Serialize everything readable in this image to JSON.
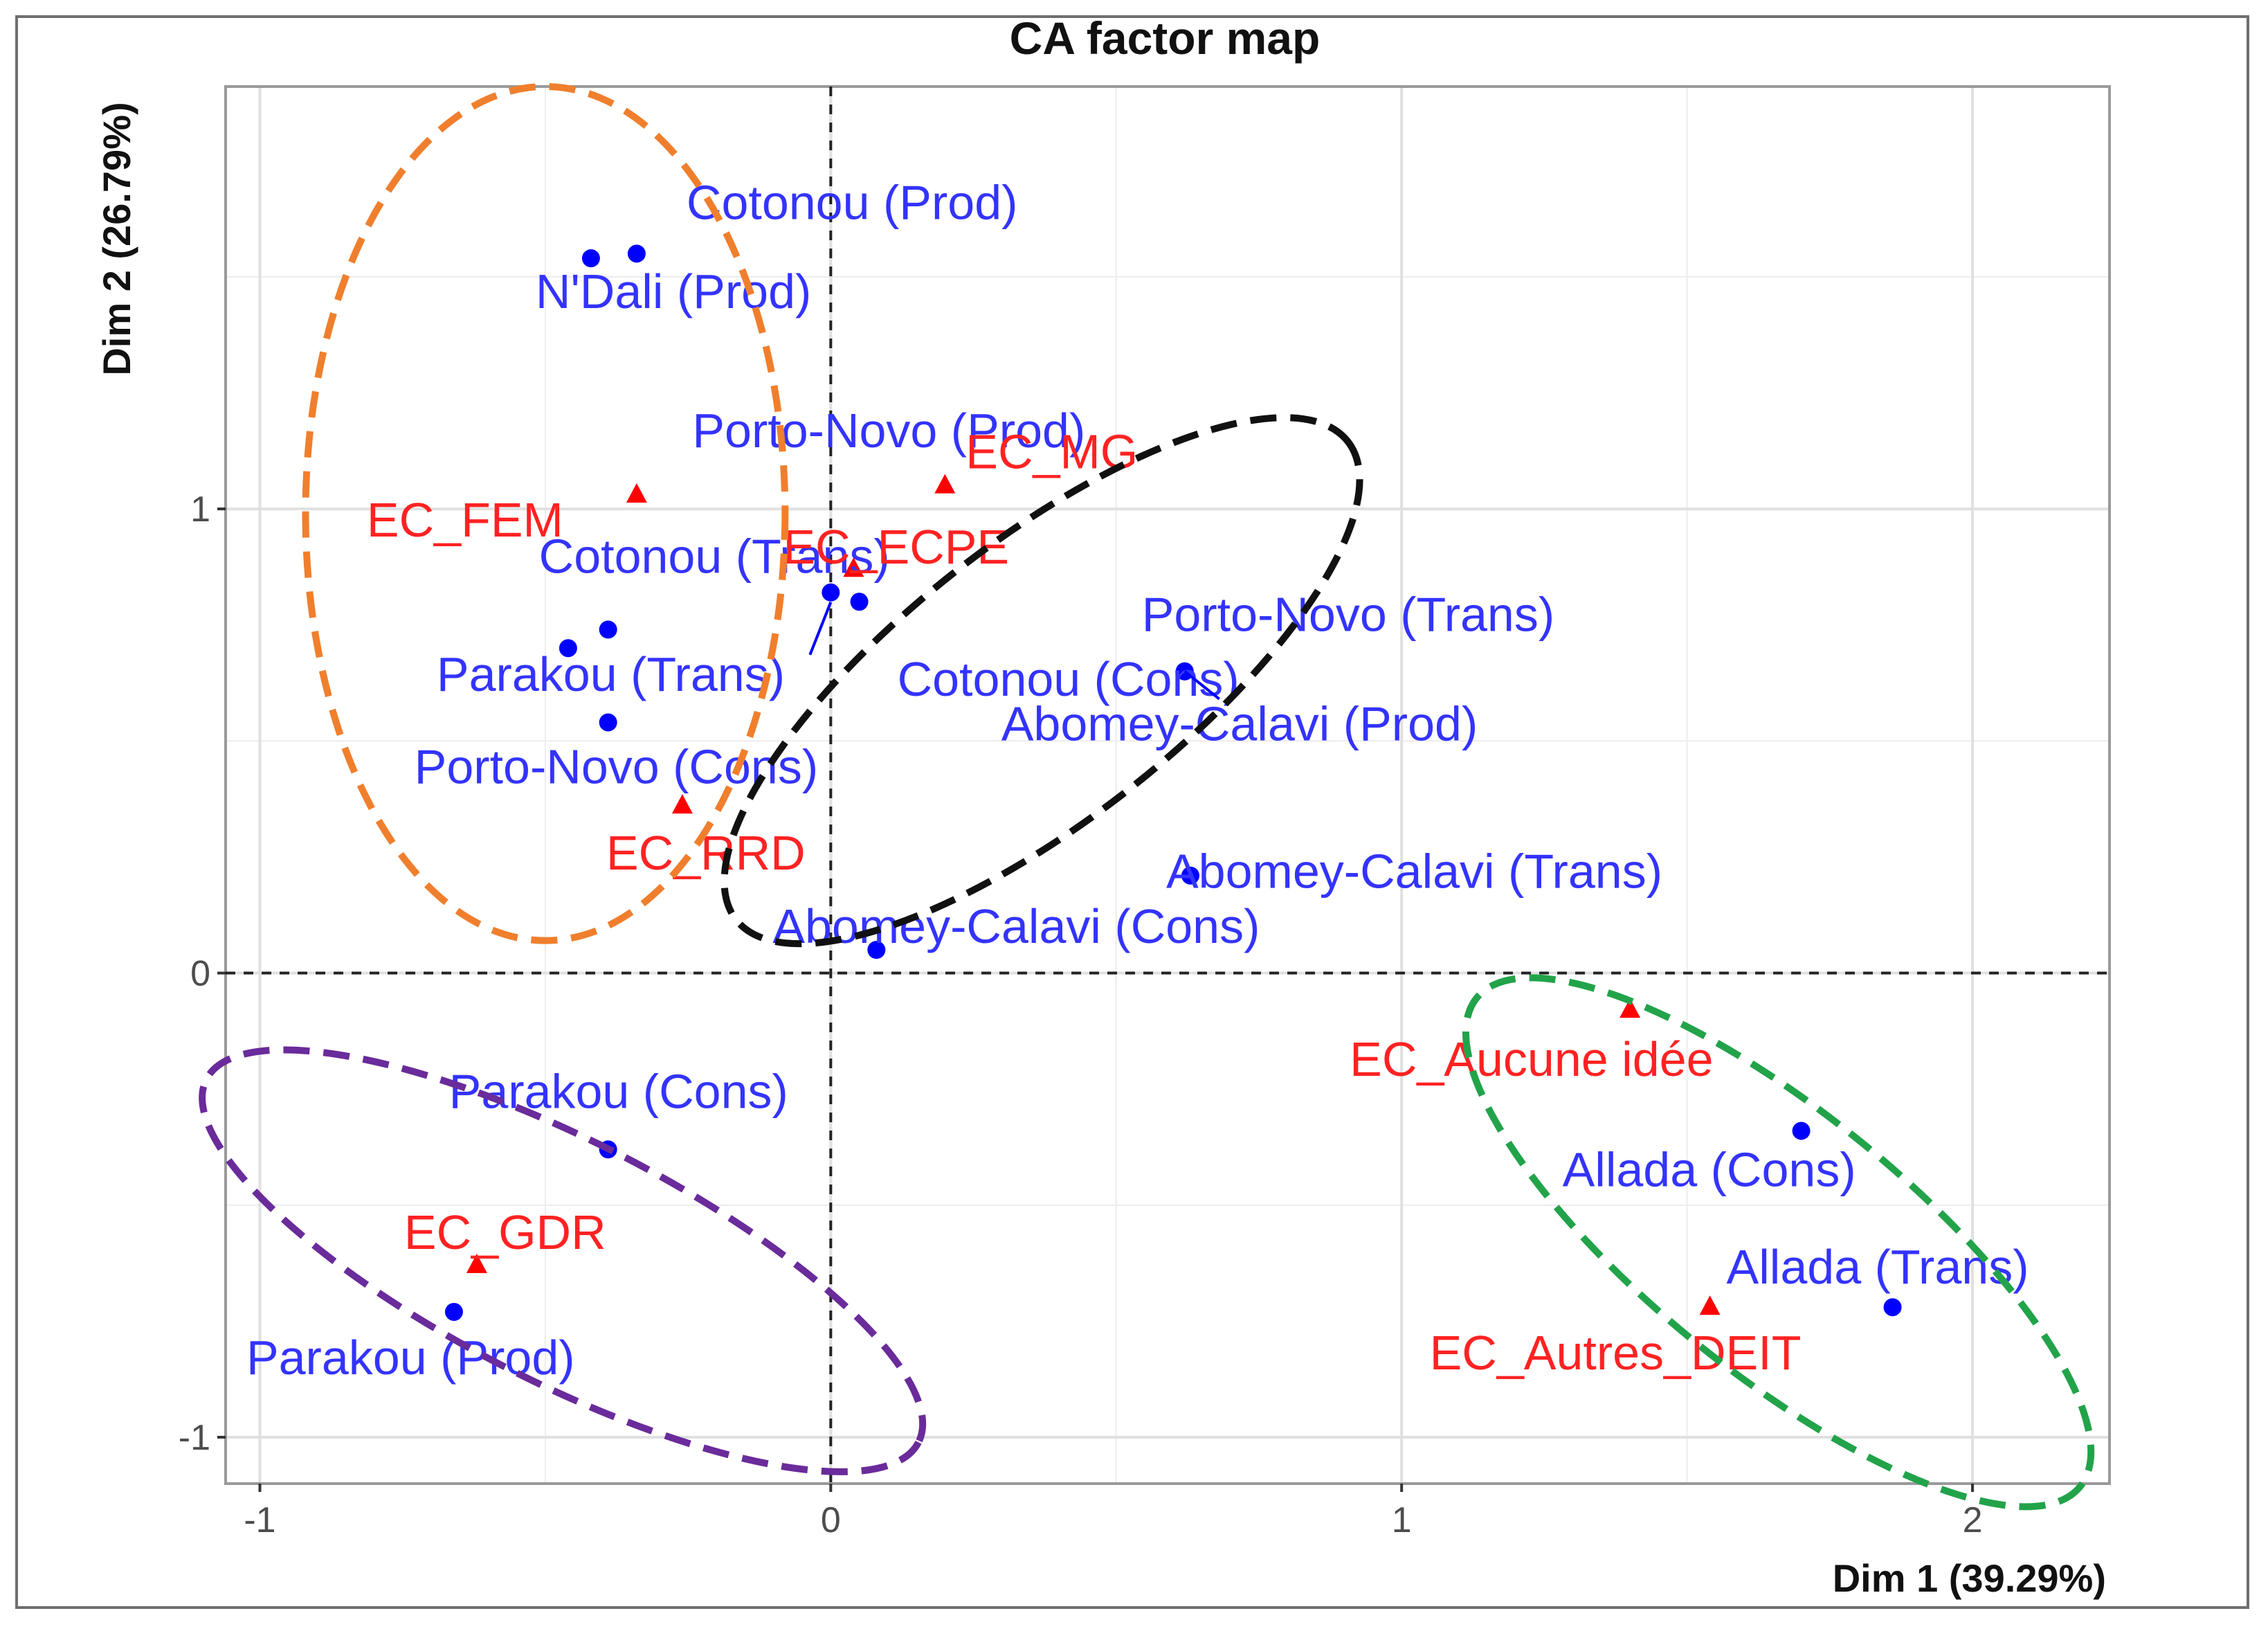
{
  "chart_data": {
    "type": "scatter",
    "title": "CA factor map",
    "xlabel": "Dim 1 (39.29%)",
    "ylabel": "Dim 2 (26.79%)",
    "xlim": [
      -1.06,
      2.24
    ],
    "ylim": [
      -1.1,
      1.91
    ],
    "xticks": [
      -1,
      0,
      1,
      2
    ],
    "yticks": [
      -1,
      0,
      1
    ],
    "tick_labels_x": [
      "-1",
      "0",
      "1",
      "2"
    ],
    "tick_labels_y": [
      "-1",
      "0",
      "1"
    ],
    "grid": true,
    "reference_lines": [
      {
        "axis": "x",
        "value": 0,
        "style": "dashed"
      },
      {
        "axis": "y",
        "value": 0,
        "style": "dashed"
      }
    ],
    "colors": {
      "rows": "#0000ff",
      "rows_text": "#3333ff",
      "cols": "#ff0000",
      "cols_text": "#ff2222",
      "grid": "#e0e0e0",
      "panel_border": "#9a9a9a"
    },
    "series": [
      {
        "marker": "circle",
        "color": "#0000ff",
        "points": [
          {
            "label": "Cotonou (Prod)",
            "x": -0.34,
            "y": 1.55
          },
          {
            "label": "N'Dali (Prod)",
            "x": -0.42,
            "y": 1.54
          },
          {
            "label": "Porto-Novo (Prod)",
            "x": 0.0,
            "y": 0.82
          },
          {
            "label": "Cotonou (Trans)",
            "x": -0.39,
            "y": 0.74
          },
          {
            "label": "Parakou (Trans)",
            "x": -0.46,
            "y": 0.7
          },
          {
            "label": "Cotonou (Cons)",
            "x": 0.05,
            "y": 0.8
          },
          {
            "label": "Porto-Novo (Cons)",
            "x": -0.39,
            "y": 0.54
          },
          {
            "label": "Porto-Novo (Trans)",
            "x": 0.62,
            "y": 0.65
          },
          {
            "label": "Abomey-Calavi (Prod)",
            "x": 0.62,
            "y": 0.65
          },
          {
            "label": "Abomey-Calavi (Trans)",
            "x": 0.63,
            "y": 0.21
          },
          {
            "label": "Abomey-Calavi (Cons)",
            "x": 0.08,
            "y": 0.05
          },
          {
            "label": "Parakou (Cons)",
            "x": -0.39,
            "y": -0.38
          },
          {
            "label": "Parakou (Prod)",
            "x": -0.66,
            "y": -0.73
          },
          {
            "label": "Allada (Cons)",
            "x": 1.7,
            "y": -0.34
          },
          {
            "label": "Allada (Trans)",
            "x": 1.86,
            "y": -0.72
          }
        ]
      },
      {
        "marker": "triangle",
        "color": "#ff0000",
        "points": [
          {
            "label": "EC_MG",
            "x": 0.2,
            "y": 1.05
          },
          {
            "label": "EC_FEM",
            "x": -0.34,
            "y": 1.03
          },
          {
            "label": "EC_ECPE",
            "x": 0.04,
            "y": 0.87
          },
          {
            "label": "EC_RRD",
            "x": -0.26,
            "y": 0.36
          },
          {
            "label": "EC_Aucune idée",
            "x": 1.4,
            "y": -0.08
          },
          {
            "label": "EC_GDR",
            "x": -0.62,
            "y": -0.63
          },
          {
            "label": "EC_Autres_DEIT",
            "x": 1.54,
            "y": -0.72
          }
        ]
      }
    ],
    "groups": [
      {
        "color": "#f07f2d",
        "cx": -0.5,
        "cy": 0.99,
        "rx": 0.42,
        "ry": 0.92,
        "angle": 0
      },
      {
        "color": "#111111",
        "cx": 0.37,
        "cy": 0.63,
        "rx": 0.68,
        "ry": 0.3,
        "angle": -38
      },
      {
        "color": "#6a2b9b",
        "cx": -0.47,
        "cy": -0.62,
        "rx": 0.7,
        "ry": 0.26,
        "angle": 27
      },
      {
        "color": "#22a34a",
        "cx": 1.66,
        "cy": -0.58,
        "rx": 0.68,
        "ry": 0.28,
        "angle": 39
      }
    ]
  }
}
